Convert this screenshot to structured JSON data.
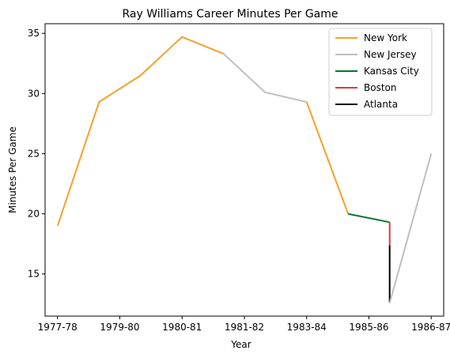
{
  "chart_data": {
    "type": "line",
    "title": "Ray Williams  Career Minutes Per Game",
    "xlabel": "Year",
    "ylabel": "Minutes Per Game",
    "xlim": [
      -0.3,
      9.3
    ],
    "ylim": [
      11.5,
      35.8
    ],
    "x_ticks": [
      {
        "x": 0,
        "label": "1977-78"
      },
      {
        "x": 1.5,
        "label": "1979-80"
      },
      {
        "x": 3,
        "label": "1980-81"
      },
      {
        "x": 4.5,
        "label": "1981-82"
      },
      {
        "x": 6,
        "label": "1983-84"
      },
      {
        "x": 7.5,
        "label": "1985-86"
      },
      {
        "x": 9,
        "label": "1986-87"
      }
    ],
    "y_ticks": [
      15,
      20,
      25,
      30,
      35
    ],
    "legend_position": "top-right",
    "series": [
      {
        "name": "New York",
        "color": "#f5a12a",
        "points": [
          [
            0,
            19.0
          ],
          [
            1,
            29.3
          ],
          [
            2,
            31.5
          ],
          [
            3,
            34.7
          ],
          [
            4,
            33.3
          ]
        ]
      },
      {
        "name": "New Jersey",
        "color": "#bfbfbf",
        "points": [
          [
            4,
            33.3
          ],
          [
            5,
            30.1
          ],
          [
            6,
            29.3
          ]
        ]
      },
      {
        "name": "New York",
        "color": "#f5a12a",
        "points": [
          [
            6,
            29.3
          ],
          [
            7,
            20.0
          ]
        ]
      },
      {
        "name": "Kansas City",
        "color": "#00792f",
        "points": [
          [
            7,
            20.0
          ],
          [
            8,
            19.3
          ]
        ]
      },
      {
        "name": "Boston",
        "color": "#e0383b",
        "points": [
          [
            8,
            19.3
          ],
          [
            8,
            17.4
          ]
        ]
      },
      {
        "name": "Atlanta",
        "color": "#000000",
        "points": [
          [
            8,
            17.4
          ],
          [
            8,
            12.6
          ]
        ]
      },
      {
        "name": "New Jersey",
        "color": "#bfbfbf",
        "points": [
          [
            8,
            12.6
          ],
          [
            9,
            25.0
          ]
        ]
      }
    ],
    "legend": [
      {
        "name": "New York",
        "color": "#f5a12a"
      },
      {
        "name": "New Jersey",
        "color": "#bfbfbf"
      },
      {
        "name": "Kansas City",
        "color": "#00792f"
      },
      {
        "name": "Boston",
        "color": "#e0383b"
      },
      {
        "name": "Atlanta",
        "color": "#000000"
      }
    ]
  }
}
